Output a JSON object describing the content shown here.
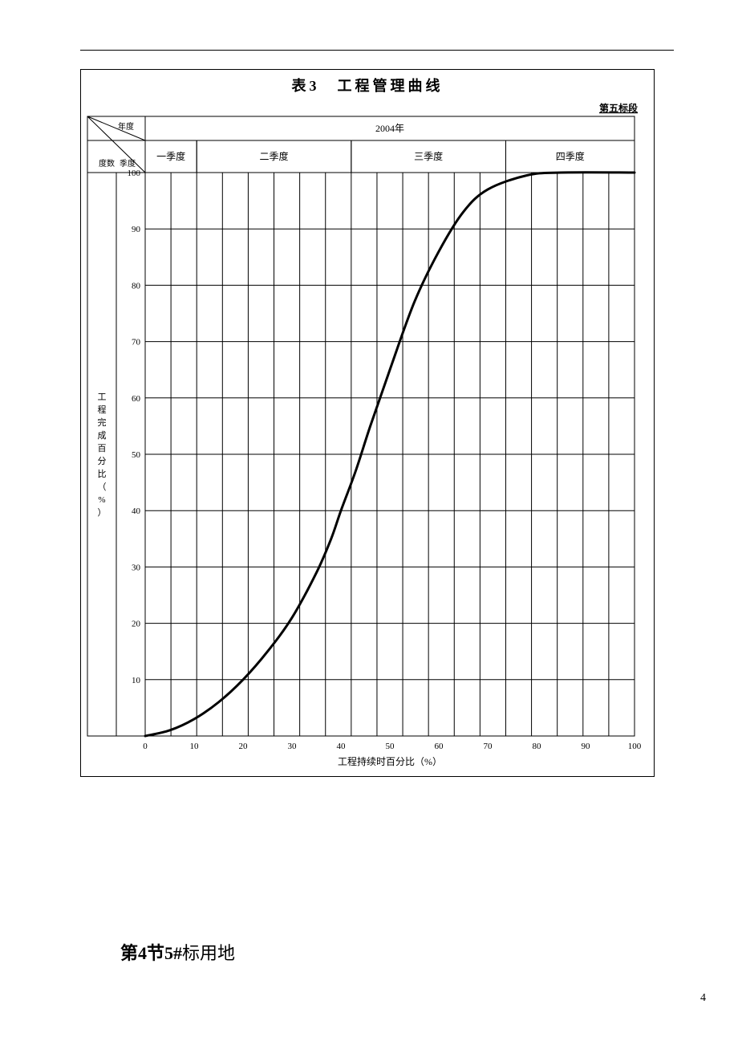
{
  "figure": {
    "title": "表3　工程管理曲线",
    "subtitle_right": "第五标段",
    "header_year": "2004年",
    "header_left_top": "年度",
    "header_left_mid": "度数",
    "header_left_small": "季度",
    "quarters": [
      "一季度",
      "二季度",
      "三季度",
      "四季度"
    ],
    "y_axis_label_vertical": "工程完成百分比（%）",
    "x_axis_label": "工程持续时百分比（%）",
    "x_ticks": [
      "0",
      "10",
      "20",
      "30",
      "40",
      "50",
      "60",
      "70",
      "80",
      "90",
      "100"
    ],
    "y_ticks": [
      "10",
      "20",
      "30",
      "40",
      "50",
      "60",
      "70",
      "80",
      "90",
      "100"
    ],
    "chart": {
      "type": "line",
      "xlim": [
        0,
        100
      ],
      "ylim": [
        0,
        100
      ],
      "grid_cols": 19,
      "grid_rows": 10,
      "grid_color": "#000000",
      "grid_stroke": 1,
      "curve_stroke": 3,
      "curve_color": "#000000",
      "background_color": "#ffffff",
      "s_curve_points": [
        [
          0,
          0
        ],
        [
          5,
          1
        ],
        [
          10,
          3
        ],
        [
          15,
          6
        ],
        [
          20,
          10
        ],
        [
          25,
          15
        ],
        [
          30,
          21
        ],
        [
          35,
          29
        ],
        [
          38,
          35
        ],
        [
          40,
          40
        ],
        [
          43,
          47
        ],
        [
          46,
          55
        ],
        [
          50,
          65
        ],
        [
          55,
          77
        ],
        [
          60,
          86
        ],
        [
          65,
          93
        ],
        [
          70,
          97
        ],
        [
          78,
          99.5
        ],
        [
          85,
          100
        ],
        [
          100,
          100
        ]
      ]
    },
    "title_fontsize": 18,
    "header_fontsize": 12,
    "axis_label_fontsize": 12,
    "tick_fontsize": 11
  },
  "caption": {
    "prefix_bold": "第4节5#",
    "suffix": "标用地"
  },
  "page_number": "4"
}
